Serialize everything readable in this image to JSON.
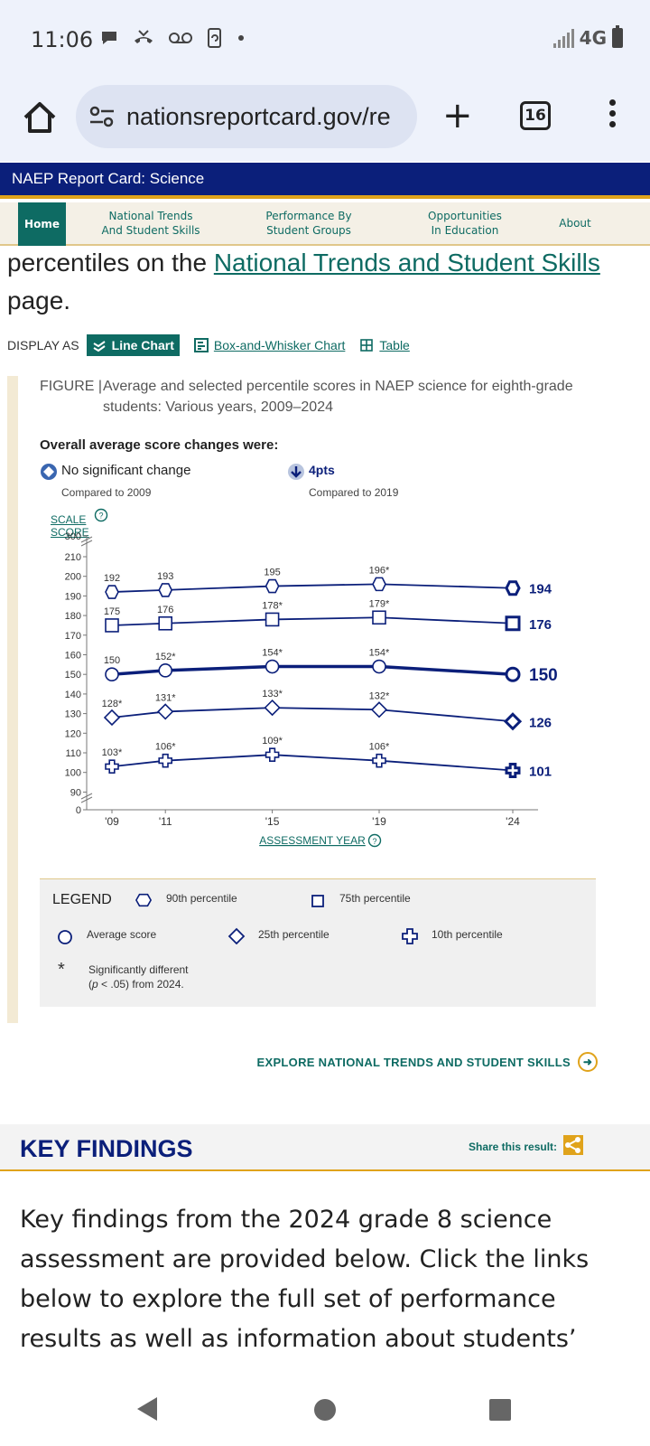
{
  "status_bar": {
    "time": "11:06",
    "network": "4G",
    "icons": [
      "chat-bubble-icon",
      "missed-call-icon",
      "voicemail-icon",
      "phone-sync-icon",
      "dot-icon",
      "signal-icon",
      "battery-icon"
    ]
  },
  "browser": {
    "url": "nationsreportcard.gov/re",
    "tab_count": "16"
  },
  "site": {
    "title": "NAEP Report Card: Science",
    "nav": [
      {
        "label_line1": "Home",
        "label_line2": ""
      },
      {
        "label_line1": "National Trends",
        "label_line2": "And Student Skills"
      },
      {
        "label_line1": "Performance By",
        "label_line2": "Student Groups"
      },
      {
        "label_line1": "Opportunities",
        "label_line2": "In Education"
      },
      {
        "label_line1": "About",
        "label_line2": ""
      }
    ]
  },
  "intro": {
    "prefix": "percentiles on the ",
    "link": "National Trends and Student Skills",
    "suffix": " page."
  },
  "display": {
    "label": "DISPLAY AS",
    "line_chart": "Line Chart",
    "box_whisker": "Box-and-Whisker Chart",
    "table": "Table"
  },
  "figure": {
    "prefix": "FIGURE |",
    "caption": "Average and selected percentile scores in NAEP science for eighth-grade students: Various years, 2009–2024",
    "changes_title": "Overall average score changes were:",
    "change_2009": {
      "value": "No significant change",
      "compared": "Compared to 2009"
    },
    "change_2019": {
      "value": "4pts",
      "compared": "Compared to 2019"
    },
    "scale_label_line1": "SCALE",
    "scale_label_line2": "SCORE",
    "assessment_label": "ASSESSMENT YEAR"
  },
  "chart_data": {
    "type": "line",
    "x_tick_labels": [
      "'09",
      "'11",
      "'15",
      "'19",
      "'24"
    ],
    "x": [
      2009,
      2011,
      2015,
      2019,
      2024
    ],
    "xlabel": "ASSESSMENT YEAR",
    "ylabel": "SCALE SCORE",
    "y_ticks": [
      0,
      90,
      100,
      110,
      120,
      130,
      140,
      150,
      160,
      170,
      180,
      190,
      200,
      210,
      300
    ],
    "y_axis_break": true,
    "ylim_display": [
      90,
      210
    ],
    "series": [
      {
        "name": "90th percentile",
        "marker": "hexagon",
        "values": [
          192,
          193,
          195,
          196,
          194
        ],
        "labels": [
          "192",
          "193",
          "195",
          "196*",
          "194"
        ]
      },
      {
        "name": "75th percentile",
        "marker": "square",
        "values": [
          175,
          176,
          178,
          179,
          176
        ],
        "labels": [
          "175",
          "176",
          "178*",
          "179*",
          "176"
        ]
      },
      {
        "name": "Average score",
        "marker": "circle",
        "values": [
          150,
          152,
          154,
          154,
          150
        ],
        "labels": [
          "150",
          "152*",
          "154*",
          "154*",
          "150"
        ]
      },
      {
        "name": "25th percentile",
        "marker": "diamond",
        "values": [
          128,
          131,
          133,
          132,
          126
        ],
        "labels": [
          "128*",
          "131*",
          "133*",
          "132*",
          "126"
        ]
      },
      {
        "name": "10th percentile",
        "marker": "cross",
        "values": [
          103,
          106,
          109,
          106,
          101
        ],
        "labels": [
          "103*",
          "106*",
          "109*",
          "106*",
          "101"
        ]
      }
    ],
    "line_color": "#0b1f7a"
  },
  "legend": {
    "title": "LEGEND",
    "items": [
      "90th percentile",
      "75th percentile",
      "Average score",
      "25th percentile",
      "10th percentile"
    ],
    "star": "*",
    "note_line1": "Significantly different",
    "note_line2_italic": "p",
    "note_line2_rest": " < .05) from 2024.",
    "note_line2_open": "("
  },
  "explore_label": "EXPLORE NATIONAL TRENDS AND STUDENT SKILLS",
  "key_findings": {
    "title": "KEY FINDINGS",
    "share_label": "Share this result:",
    "text": "Key findings from the 2024 grade 8 science assessment are provided below. Click the links below to explore the full set of performance results as well as information about students’"
  },
  "colors": {
    "navy": "#0b1f7a",
    "teal": "#0e6b63",
    "gold": "#e0a31b"
  }
}
